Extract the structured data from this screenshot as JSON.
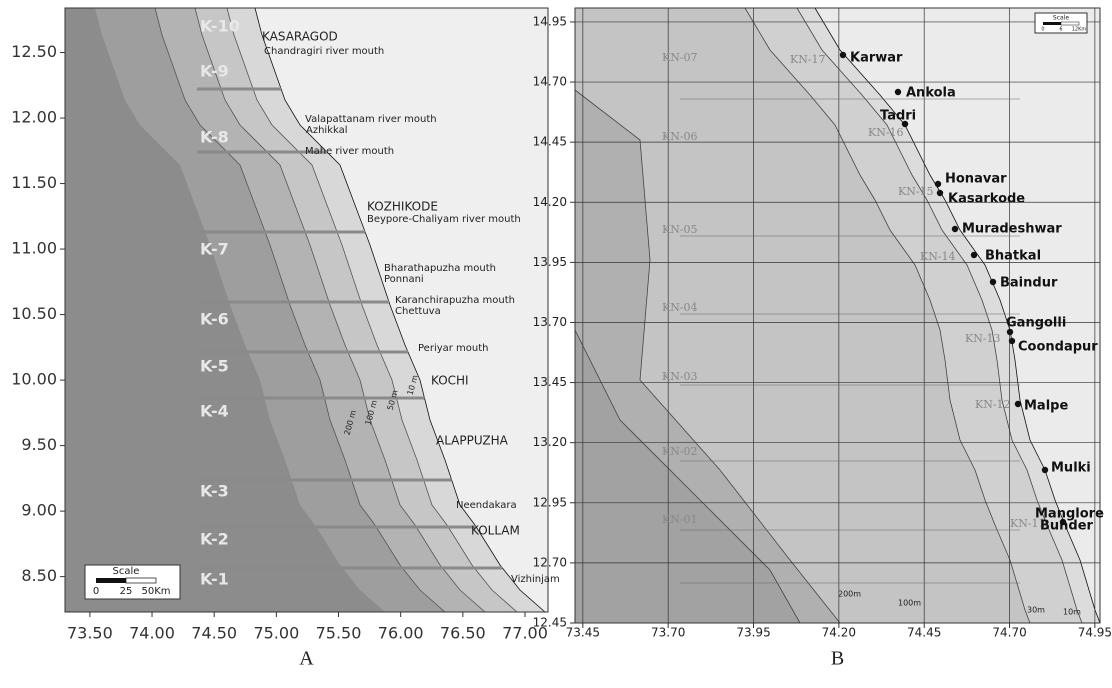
{
  "panels": [
    {
      "label": "A",
      "xlim": [
        73.3,
        77.185
      ],
      "ylim": [
        8.23,
        12.84
      ],
      "xticks": [
        {
          "value": 73.5,
          "label": "73.50"
        },
        {
          "value": 74.0,
          "label": "74.00"
        },
        {
          "value": 74.5,
          "label": "74.50"
        },
        {
          "value": 75.0,
          "label": "75.00"
        },
        {
          "value": 75.5,
          "label": "75.50"
        },
        {
          "value": 76.0,
          "label": "76.00"
        },
        {
          "value": 76.5,
          "label": "76.50"
        },
        {
          "value": 77.0,
          "label": "77.00"
        }
      ],
      "yticks": [
        {
          "value": 12.5,
          "label": "12.50"
        },
        {
          "value": 12.0,
          "label": "12.00"
        },
        {
          "value": 11.5,
          "label": "11.50"
        },
        {
          "value": 11.0,
          "label": "11.00"
        },
        {
          "value": 10.5,
          "label": "10.50"
        },
        {
          "value": 10.0,
          "label": "10.00"
        },
        {
          "value": 9.5,
          "label": "9.50"
        },
        {
          "value": 9.0,
          "label": "9.00"
        },
        {
          "value": 8.5,
          "label": "8.50"
        }
      ],
      "zones": [
        "K-10",
        "K-9",
        "K-8",
        "K-7",
        "K-6",
        "K-5",
        "K-4",
        "K-3",
        "K-2",
        "K-1"
      ],
      "places": [
        "KASARAGOD",
        "Chandragiri river mouth",
        "Valapattanam river mouth",
        "Azhikkal",
        "Mahe river mouth",
        "KOZHIKODE",
        "Beypore-Chaliyam river mouth",
        "Bharathapuzha mouth",
        "Ponnani",
        "Karanchirapuzha mouth",
        "Chettuva",
        "Periyar mouth",
        "KOCHI",
        "ALAPPUZHA",
        "Neendakara",
        "KOLLAM",
        "Vizhinjam"
      ],
      "depths": [
        "200 m",
        "100 m",
        "50 m",
        "10 m"
      ],
      "scale": {
        "title": "Scale",
        "marks": [
          "0",
          "25",
          "50Km"
        ]
      }
    },
    {
      "label": "B",
      "xlim": [
        73.427,
        74.965
      ],
      "ylim": [
        12.45,
        15.008
      ],
      "xticks": [
        {
          "value": 73.45,
          "label": "73.45"
        },
        {
          "value": 73.7,
          "label": "73.70"
        },
        {
          "value": 73.95,
          "label": "73.95"
        },
        {
          "value": 74.2,
          "label": "74.20"
        },
        {
          "value": 74.45,
          "label": "74.45"
        },
        {
          "value": 74.7,
          "label": "74.70"
        },
        {
          "value": 74.95,
          "label": "74.95"
        }
      ],
      "yticks": [
        {
          "value": 14.95,
          "label": "14.95"
        },
        {
          "value": 14.7,
          "label": "14.70"
        },
        {
          "value": 14.45,
          "label": "14.45"
        },
        {
          "value": 14.2,
          "label": "14.20"
        },
        {
          "value": 13.95,
          "label": "13.95"
        },
        {
          "value": 13.7,
          "label": "13.70"
        },
        {
          "value": 13.45,
          "label": "13.45"
        },
        {
          "value": 13.2,
          "label": "13.20"
        },
        {
          "value": 12.95,
          "label": "12.95"
        },
        {
          "value": 12.7,
          "label": "12.70"
        },
        {
          "value": 12.45,
          "label": "12.45"
        }
      ],
      "zones": [
        "KN-07",
        "KN-06",
        "KN-05",
        "KN-04",
        "KN-03",
        "KN-02",
        "KN-01",
        "KN-17",
        "KN-16",
        "KN-15",
        "KN-14",
        "KN-13",
        "KN-12",
        "KN-11"
      ],
      "places": [
        "Karwar",
        "Ankola",
        "Tadri",
        "Honavar",
        "Kasarkode",
        "Muradeshwar",
        "Bhatkal",
        "Baindur",
        "Gangolli",
        "Coondapur",
        "Malpe",
        "Mulki",
        "Manglore",
        "Bunder"
      ],
      "depths": [
        "200m",
        "100m",
        "30m",
        "10m"
      ],
      "scale": {
        "title": "Scale",
        "marks": [
          "0",
          "6",
          "12Km"
        ]
      }
    }
  ]
}
